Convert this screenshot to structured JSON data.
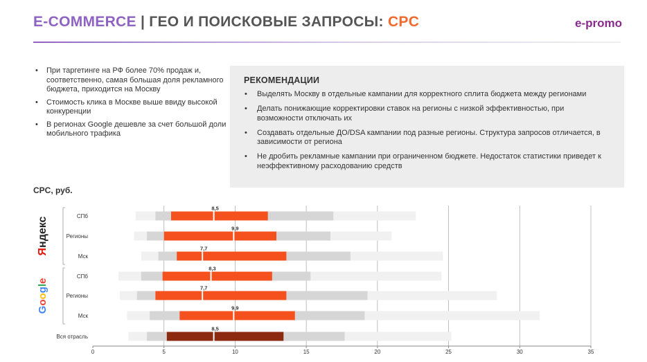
{
  "header": {
    "title_part1": "E-COMMERCE",
    "title_sep": " | ",
    "title_part2": "ГЕО И ПОИСКОВЫЕ ЗАПРОСЫ: ",
    "title_part3": "CPC",
    "brand": "e-promo"
  },
  "insights": [
    "При таргетинге на РФ более 70% продаж и, соответственно, самая большая доля рекламного бюджета, приходится на Москву",
    "Стоимость клика в Москве выше ввиду высокой конкуренции",
    "В регионах Google дешевле за счет большой доли мобильного трафика"
  ],
  "recommendations": {
    "title": "РЕКОМЕНДАЦИИ",
    "items": [
      "Выделять Москву в отдельные кампании для корректного сплита бюджета между регионами",
      "Делать понижающие корректировки ставок на регионы с низкой эффективностью, при возможности отключать их",
      "Создавать отдельные ДО/DSA кампании под разные регионы. Структура запросов отличается, в зависимости от региона",
      "Не дробить рекламные кампании при ограниченном бюджете. Недостаток статистики приведет к неэффективному расходованию средств"
    ]
  },
  "chart_data": {
    "type": "bar",
    "subtype": "range-box",
    "title": "CPC, руб.",
    "xlim": [
      0,
      35
    ],
    "xticks": [
      0,
      5,
      10,
      15,
      20,
      25,
      30,
      35
    ],
    "grid": true,
    "groups": [
      {
        "name": "Яндекс",
        "rows": [
          0,
          1,
          2
        ]
      },
      {
        "name": "Google",
        "rows": [
          3,
          4,
          5
        ]
      }
    ],
    "rows": [
      {
        "label": "СПб",
        "outer": [
          3.0,
          22.7
        ],
        "mid": [
          4.4,
          16.9
        ],
        "inner": [
          5.5,
          12.3
        ],
        "median": 8.5
      },
      {
        "label": "Регионы",
        "outer": [
          2.9,
          21.0
        ],
        "mid": [
          3.8,
          16.7
        ],
        "inner": [
          5.0,
          12.9
        ],
        "median": 9.9
      },
      {
        "label": "Мск",
        "outer": [
          3.4,
          24.6
        ],
        "mid": [
          4.6,
          18.1
        ],
        "inner": [
          5.9,
          13.6
        ],
        "median": 7.7
      },
      {
        "label": "СПб",
        "outer": [
          1.8,
          24.5
        ],
        "mid": [
          3.4,
          15.3
        ],
        "inner": [
          4.9,
          12.6
        ],
        "median": 8.3
      },
      {
        "label": "Регионы",
        "outer": [
          1.9,
          28.4
        ],
        "mid": [
          3.1,
          19.3
        ],
        "inner": [
          4.4,
          13.6
        ],
        "median": 7.7
      },
      {
        "label": "Мск",
        "outer": [
          2.4,
          31.4
        ],
        "mid": [
          4.0,
          19.1
        ],
        "inner": [
          6.1,
          14.2
        ],
        "median": 9.9
      },
      {
        "label": "Вся отрасль",
        "outer": [
          2.5,
          25.2
        ],
        "mid": [
          3.8,
          17.7
        ],
        "inner": [
          5.2,
          13.4
        ],
        "median": 8.5
      }
    ],
    "colors": {
      "outer": "#f1f1f1",
      "mid": "#d6d6d6",
      "inner": "#f4511e",
      "inner_total": "#8b2a0e",
      "median_line": "#ffffff",
      "grid": "#b0b0b0"
    }
  }
}
